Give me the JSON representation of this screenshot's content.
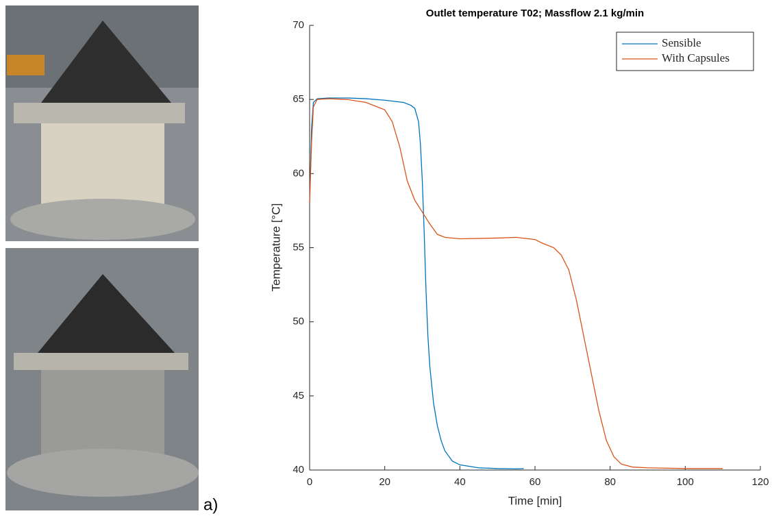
{
  "panel_label": "a)",
  "chart_data": {
    "type": "line",
    "title": "Outlet temperature T02; Massflow 2.1 kg/min",
    "xlabel": "Time [min]",
    "ylabel": "Temperature [°C]",
    "xlim": [
      0,
      120
    ],
    "xticks": [
      0,
      20,
      40,
      60,
      80,
      100,
      120
    ],
    "ylim": [
      40,
      70
    ],
    "yticks": [
      40,
      45,
      50,
      55,
      60,
      65,
      70
    ],
    "legend": "upper right",
    "series": [
      {
        "name": "Sensible",
        "color": "#0072bd",
        "x": [
          0,
          0.5,
          1,
          2,
          5,
          10,
          15,
          20,
          25,
          27,
          28,
          29,
          29.5,
          30,
          30.5,
          31,
          31.5,
          32,
          33,
          34,
          35,
          36,
          38,
          40,
          45,
          50,
          55,
          57
        ],
        "values": [
          58,
          63,
          64.8,
          65.05,
          65.1,
          65.1,
          65.05,
          64.95,
          64.8,
          64.6,
          64.4,
          63.5,
          62,
          59.5,
          56,
          52,
          49,
          47,
          44.5,
          43,
          42,
          41.3,
          40.6,
          40.35,
          40.15,
          40.1,
          40.08,
          40.1
        ]
      },
      {
        "name": "With Capsules",
        "color": "#d95319",
        "x": [
          0,
          0.5,
          1,
          2,
          5,
          10,
          15,
          20,
          22,
          24,
          26,
          28,
          30,
          32,
          34,
          36,
          40,
          50,
          55,
          60,
          62,
          65,
          67,
          69,
          71,
          73,
          75,
          77,
          79,
          81,
          83,
          86,
          90,
          100,
          110
        ],
        "values": [
          58,
          62,
          64.5,
          65,
          65.05,
          65,
          64.8,
          64.3,
          63.5,
          61.8,
          59.5,
          58.2,
          57.4,
          56.6,
          55.9,
          55.7,
          55.6,
          55.65,
          55.7,
          55.55,
          55.3,
          55,
          54.5,
          53.5,
          51.5,
          49,
          46.5,
          44,
          42,
          40.9,
          40.4,
          40.2,
          40.15,
          40.1,
          40.1
        ]
      }
    ]
  }
}
